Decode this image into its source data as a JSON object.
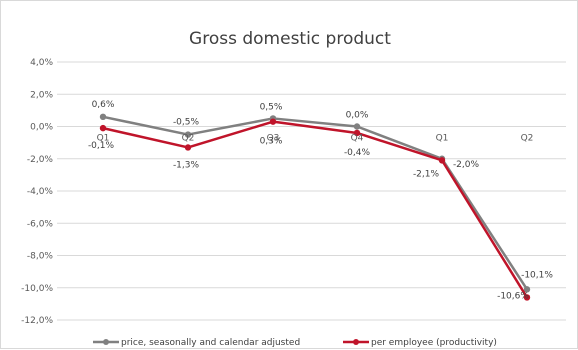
{
  "chart_data": {
    "type": "line",
    "title": "Gross domestic product",
    "categories": [
      "Q1",
      "Q2",
      "Q3",
      "Q4",
      "Q1",
      "Q2"
    ],
    "y_ticks": [
      "4,0%",
      "2,0%",
      "0,0%",
      "-2,0%",
      "-4,0%",
      "-6,0%",
      "-8,0%",
      "-10,0%",
      "-12,0%"
    ],
    "ylim": [
      -12,
      4
    ],
    "grid": true,
    "legend_position": "bottom",
    "series": [
      {
        "name": "price, seasonally and calendar adjusted",
        "color": "#808080",
        "values": [
          0.6,
          -0.5,
          0.5,
          0.0,
          -2.0,
          -10.1
        ],
        "labels": [
          "0,6%",
          "-0,5%",
          "0,5%",
          "0,0%",
          "-2,0%",
          "-10,1%"
        ]
      },
      {
        "name": "per employee (productivity)",
        "color": "#c0142a",
        "values": [
          -0.1,
          -1.3,
          0.3,
          -0.4,
          -2.1,
          -10.6
        ],
        "labels": [
          "-0,1%",
          "-1,3%",
          "0,3%",
          "-0,4%",
          "-2,1%",
          "-10,6%"
        ]
      }
    ]
  }
}
